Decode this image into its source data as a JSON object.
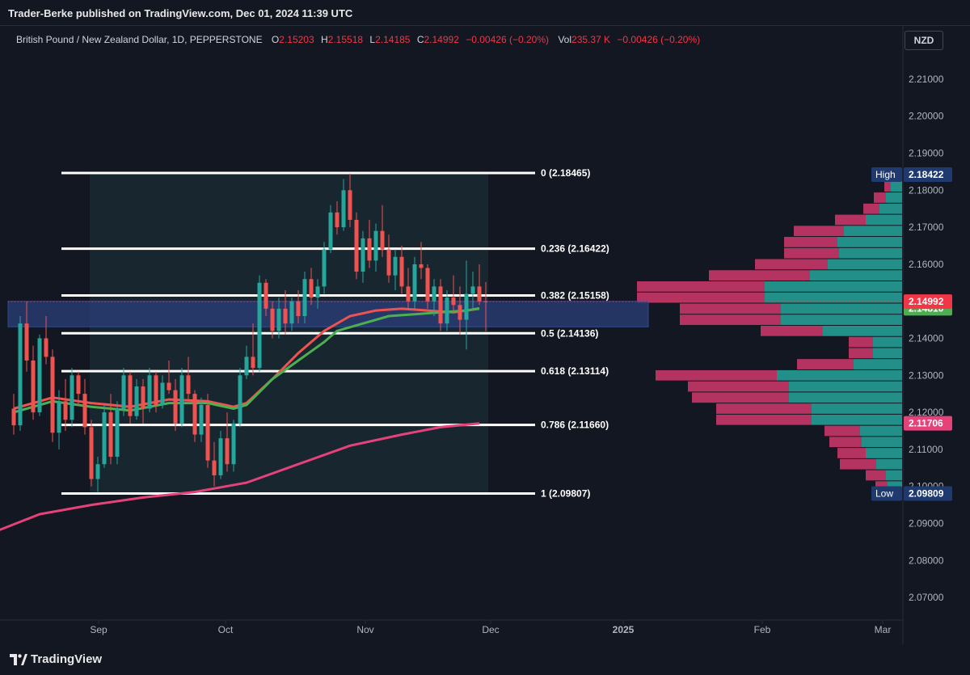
{
  "header": {
    "publisher_line": "Trader-Berke published on TradingView.com, Dec 01, 2024 11:39 UTC",
    "symbol": "British Pound / New Zealand Dollar, 1D, PEPPERSTONE",
    "open_label": "O",
    "open": "2.15203",
    "high_label": "H",
    "high": "2.15518",
    "low_label": "L",
    "low": "2.14185",
    "close_label": "C",
    "close": "2.14992",
    "change": "−0.00426 (−0.20%)",
    "vol_label": "Vol",
    "vol": "235.37 K",
    "vol_change": "−0.00426 (−0.20%)",
    "currency": "NZD"
  },
  "footer": {
    "brand": "TradingView"
  },
  "colors": {
    "up": "#26a69a",
    "down": "#ef5350",
    "ema_short": "#ef5350",
    "ema_mid": "#4caf50",
    "ema_long": "#e6427a",
    "fib": "#ffffff",
    "vp_up": "#26a69a",
    "vp_down": "#d2386c"
  },
  "chart_data": {
    "type": "candlestick",
    "y_axis": {
      "min": 2.065,
      "max": 2.215,
      "ticks": [
        "2.21000",
        "2.20000",
        "2.19000",
        "2.18000",
        "2.17000",
        "2.16000",
        "2.15000",
        "2.14000",
        "2.13000",
        "2.12000",
        "2.11000",
        "2.10000",
        "2.09000",
        "2.08000",
        "2.07000"
      ]
    },
    "x_axis": {
      "labels": [
        "Sep",
        "Oct",
        "Nov",
        "Dec",
        "2025",
        "Feb",
        "Mar"
      ]
    },
    "price_labels": {
      "high": {
        "text": "High",
        "value": "2.18422"
      },
      "low": {
        "text": "Low",
        "value": "2.09809"
      },
      "last": "2.14992",
      "ema_mid": "2.14810",
      "ema_long": "2.11706"
    },
    "fib_levels": [
      {
        "label": "0 (2.18465)",
        "value": 2.18465
      },
      {
        "label": "0.236 (2.16422)",
        "value": 2.16422
      },
      {
        "label": "0.382 (2.15158)",
        "value": 2.15158
      },
      {
        "label": "0.5 (2.14136)",
        "value": 2.14136
      },
      {
        "label": "0.618 (2.13114)",
        "value": 2.13114
      },
      {
        "label": "0.786 (2.11660)",
        "value": 2.1166
      },
      {
        "label": "1 (2.09807)",
        "value": 2.09807
      }
    ],
    "zone": {
      "top": 2.15,
      "bottom": 2.1431
    },
    "candles": [
      [
        2.121,
        2.125,
        2.114,
        2.1165
      ],
      [
        2.1165,
        2.146,
        2.115,
        2.144
      ],
      [
        2.144,
        2.15,
        2.131,
        2.134
      ],
      [
        2.134,
        2.138,
        2.118,
        2.12
      ],
      [
        2.12,
        2.141,
        2.119,
        2.14
      ],
      [
        2.14,
        2.146,
        2.133,
        2.135
      ],
      [
        2.135,
        2.137,
        2.112,
        2.1145
      ],
      [
        2.1145,
        2.126,
        2.11,
        2.123
      ],
      [
        2.123,
        2.129,
        2.115,
        2.118
      ],
      [
        2.118,
        2.132,
        2.116,
        2.13
      ],
      [
        2.13,
        2.131,
        2.122,
        2.125
      ],
      [
        2.125,
        2.129,
        2.114,
        2.116
      ],
      [
        2.116,
        2.118,
        2.1,
        2.102
      ],
      [
        2.102,
        2.108,
        2.0985,
        2.106
      ],
      [
        2.106,
        2.122,
        2.105,
        2.12
      ],
      [
        2.12,
        2.125,
        2.106,
        2.108
      ],
      [
        2.108,
        2.123,
        2.106,
        2.121
      ],
      [
        2.121,
        2.132,
        2.119,
        2.13
      ],
      [
        2.13,
        2.131,
        2.117,
        2.119
      ],
      [
        2.119,
        2.129,
        2.118,
        2.127
      ],
      [
        2.127,
        2.129,
        2.117,
        2.121
      ],
      [
        2.121,
        2.132,
        2.12,
        2.13
      ],
      [
        2.13,
        2.131,
        2.12,
        2.122
      ],
      [
        2.122,
        2.13,
        2.121,
        2.128
      ],
      [
        2.128,
        2.134,
        2.125,
        2.126
      ],
      [
        2.126,
        2.129,
        2.115,
        2.117
      ],
      [
        2.117,
        2.132,
        2.116,
        2.13
      ],
      [
        2.13,
        2.135,
        2.123,
        2.125
      ],
      [
        2.125,
        2.126,
        2.112,
        2.114
      ],
      [
        2.114,
        2.124,
        2.112,
        2.122
      ],
      [
        2.122,
        2.125,
        2.105,
        2.107
      ],
      [
        2.107,
        2.112,
        2.1,
        2.103
      ],
      [
        2.103,
        2.115,
        2.102,
        2.113
      ],
      [
        2.113,
        2.12,
        2.104,
        2.106
      ],
      [
        2.106,
        2.118,
        2.104,
        2.117
      ],
      [
        2.117,
        2.132,
        2.116,
        2.13
      ],
      [
        2.13,
        2.138,
        2.129,
        2.135
      ],
      [
        2.135,
        2.144,
        2.13,
        2.132
      ],
      [
        2.132,
        2.157,
        2.131,
        2.155
      ],
      [
        2.155,
        2.156,
        2.146,
        2.148
      ],
      [
        2.148,
        2.15,
        2.14,
        2.142
      ],
      [
        2.142,
        2.151,
        2.14,
        2.148
      ],
      [
        2.148,
        2.153,
        2.141,
        2.144
      ],
      [
        2.144,
        2.151,
        2.142,
        2.15
      ],
      [
        2.15,
        2.153,
        2.144,
        2.146
      ],
      [
        2.146,
        2.158,
        2.144,
        2.156
      ],
      [
        2.156,
        2.159,
        2.149,
        2.151
      ],
      [
        2.151,
        2.156,
        2.148,
        2.154
      ],
      [
        2.154,
        2.166,
        2.152,
        2.164
      ],
      [
        2.164,
        2.176,
        2.163,
        2.174
      ],
      [
        2.174,
        2.177,
        2.168,
        2.17
      ],
      [
        2.17,
        2.183,
        2.169,
        2.18
      ],
      [
        2.18,
        2.1845,
        2.17,
        2.172
      ],
      [
        2.172,
        2.174,
        2.156,
        2.158
      ],
      [
        2.158,
        2.169,
        2.155,
        2.167
      ],
      [
        2.167,
        2.172,
        2.159,
        2.161
      ],
      [
        2.161,
        2.171,
        2.158,
        2.169
      ],
      [
        2.169,
        2.176,
        2.162,
        2.164
      ],
      [
        2.164,
        2.168,
        2.155,
        2.157
      ],
      [
        2.157,
        2.164,
        2.153,
        2.162
      ],
      [
        2.162,
        2.165,
        2.152,
        2.154
      ],
      [
        2.154,
        2.159,
        2.148,
        2.15
      ],
      [
        2.15,
        2.162,
        2.148,
        2.16
      ],
      [
        2.16,
        2.166,
        2.156,
        2.159
      ],
      [
        2.159,
        2.16,
        2.148,
        2.15
      ],
      [
        2.15,
        2.156,
        2.146,
        2.154
      ],
      [
        2.154,
        2.156,
        2.142,
        2.144
      ],
      [
        2.144,
        2.153,
        2.142,
        2.151
      ],
      [
        2.151,
        2.157,
        2.147,
        2.149
      ],
      [
        2.149,
        2.154,
        2.141,
        2.145
      ],
      [
        2.145,
        2.161,
        2.137,
        2.152
      ],
      [
        2.152,
        2.158,
        2.148,
        2.154
      ],
      [
        2.154,
        2.16,
        2.149,
        2.15
      ],
      [
        2.15,
        2.1552,
        2.1419,
        2.1499
      ]
    ],
    "ema_short": [
      [
        0,
        2.121
      ],
      [
        6,
        2.124
      ],
      [
        12,
        2.1225
      ],
      [
        18,
        2.1215
      ],
      [
        24,
        2.1235
      ],
      [
        30,
        2.123
      ],
      [
        34,
        2.1215
      ],
      [
        36,
        2.1225
      ],
      [
        40,
        2.129
      ],
      [
        44,
        2.136
      ],
      [
        48,
        2.142
      ],
      [
        52,
        2.146
      ],
      [
        56,
        2.1475
      ],
      [
        60,
        2.148
      ],
      [
        64,
        2.1475
      ],
      [
        68,
        2.147
      ],
      [
        72,
        2.148
      ]
    ],
    "ema_mid": [
      [
        0,
        2.12
      ],
      [
        6,
        2.123
      ],
      [
        12,
        2.1215
      ],
      [
        18,
        2.1205
      ],
      [
        24,
        2.1225
      ],
      [
        30,
        2.1225
      ],
      [
        34,
        2.121
      ],
      [
        36,
        2.122
      ],
      [
        40,
        2.129
      ],
      [
        44,
        2.134
      ],
      [
        48,
        2.139
      ],
      [
        50,
        2.142
      ],
      [
        54,
        2.144
      ],
      [
        58,
        2.146
      ],
      [
        62,
        2.1465
      ],
      [
        66,
        2.147
      ],
      [
        70,
        2.1475
      ],
      [
        72,
        2.1481
      ]
    ],
    "ema_long": [
      [
        -4,
        2.087
      ],
      [
        4,
        2.0925
      ],
      [
        12,
        2.095
      ],
      [
        20,
        2.097
      ],
      [
        28,
        2.0985
      ],
      [
        36,
        2.101
      ],
      [
        44,
        2.106
      ],
      [
        52,
        2.111
      ],
      [
        60,
        2.114
      ],
      [
        66,
        2.116
      ],
      [
        72,
        2.117
      ]
    ],
    "volume_profile": [
      {
        "price": 2.184,
        "up": 8,
        "down": 3
      },
      {
        "price": 2.181,
        "up": 14,
        "down": 8
      },
      {
        "price": 2.178,
        "up": 20,
        "down": 15
      },
      {
        "price": 2.175,
        "up": 28,
        "down": 20
      },
      {
        "price": 2.172,
        "up": 45,
        "down": 38
      },
      {
        "price": 2.169,
        "up": 72,
        "down": 62
      },
      {
        "price": 2.166,
        "up": 80,
        "down": 66
      },
      {
        "price": 2.163,
        "up": 78,
        "down": 68
      },
      {
        "price": 2.16,
        "up": 92,
        "down": 90
      },
      {
        "price": 2.157,
        "up": 114,
        "down": 125
      },
      {
        "price": 2.154,
        "up": 170,
        "down": 158
      },
      {
        "price": 2.151,
        "up": 170,
        "down": 158
      },
      {
        "price": 2.148,
        "up": 150,
        "down": 125
      },
      {
        "price": 2.145,
        "up": 150,
        "down": 125
      },
      {
        "price": 2.142,
        "up": 98,
        "down": 77
      },
      {
        "price": 2.139,
        "up": 36,
        "down": 30
      },
      {
        "price": 2.136,
        "up": 36,
        "down": 30
      },
      {
        "price": 2.133,
        "up": 60,
        "down": 70
      },
      {
        "price": 2.13,
        "up": 155,
        "down": 150
      },
      {
        "price": 2.127,
        "up": 140,
        "down": 125
      },
      {
        "price": 2.124,
        "up": 140,
        "down": 120
      },
      {
        "price": 2.121,
        "up": 112,
        "down": 118
      },
      {
        "price": 2.118,
        "up": 112,
        "down": 118
      },
      {
        "price": 2.115,
        "up": 52,
        "down": 44
      },
      {
        "price": 2.112,
        "up": 50,
        "down": 40
      },
      {
        "price": 2.109,
        "up": 45,
        "down": 35
      },
      {
        "price": 2.106,
        "up": 32,
        "down": 45
      },
      {
        "price": 2.103,
        "up": 20,
        "down": 25
      },
      {
        "price": 2.1,
        "up": 18,
        "down": 15
      }
    ]
  }
}
